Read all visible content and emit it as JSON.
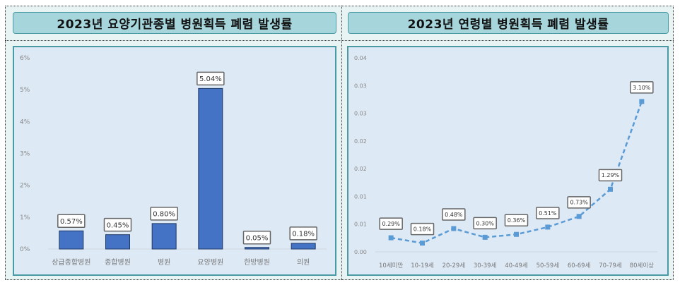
{
  "titles": {
    "left": "2023년 요양기관종별 병원획득 폐렴 발생률",
    "right": "2023년 연령별 병원획득 폐렴 발생률"
  },
  "colors": {
    "bar": "#4472c4",
    "line": "#5b9bd5",
    "panel_bg": "#dde9f5",
    "title_bg": "#a6d6dc",
    "border": "#4a9aa3"
  },
  "chart_data": [
    {
      "type": "bar",
      "title": "2023년 요양기관종별 병원획득 폐렴 발생률",
      "categories": [
        "상급종합병원",
        "종합병원",
        "병원",
        "요양병원",
        "한방병원",
        "의원"
      ],
      "values": [
        0.57,
        0.45,
        0.8,
        5.04,
        0.05,
        0.18
      ],
      "data_labels": [
        "0.57%",
        "0.45%",
        "0.80%",
        "5.04%",
        "0.05%",
        "0.18%"
      ],
      "y_ticks": [
        "0%",
        "1%",
        "2%",
        "3%",
        "4%",
        "5%",
        "6%"
      ],
      "xlabel": "",
      "ylabel": "",
      "ylim": [
        0,
        6
      ],
      "unit": "%",
      "grid": false,
      "legend": null
    },
    {
      "type": "line",
      "title": "2023년 연령별 병원획득 폐렴 발생률",
      "categories": [
        "10세미만",
        "10-19세",
        "20-29세",
        "30-39세",
        "40-49세",
        "50-59세",
        "60-69세",
        "70-79세",
        "80세이상"
      ],
      "values": [
        0.29,
        0.18,
        0.48,
        0.3,
        0.36,
        0.51,
        0.73,
        1.29,
        3.1
      ],
      "data_labels": [
        "0.29%",
        "0.18%",
        "0.48%",
        "0.30%",
        "0.36%",
        "0.51%",
        "0.73%",
        "1.29%",
        "3.10%"
      ],
      "y_ticks": [
        "0.00",
        "0.01",
        "0.01",
        "0.02",
        "0.02",
        "0.03",
        "0.03",
        "0.04"
      ],
      "xlabel": "",
      "ylabel": "",
      "ylim": [
        0,
        0.035
      ],
      "line_style": "dashed",
      "unit": "%",
      "grid": false,
      "legend": null
    }
  ]
}
